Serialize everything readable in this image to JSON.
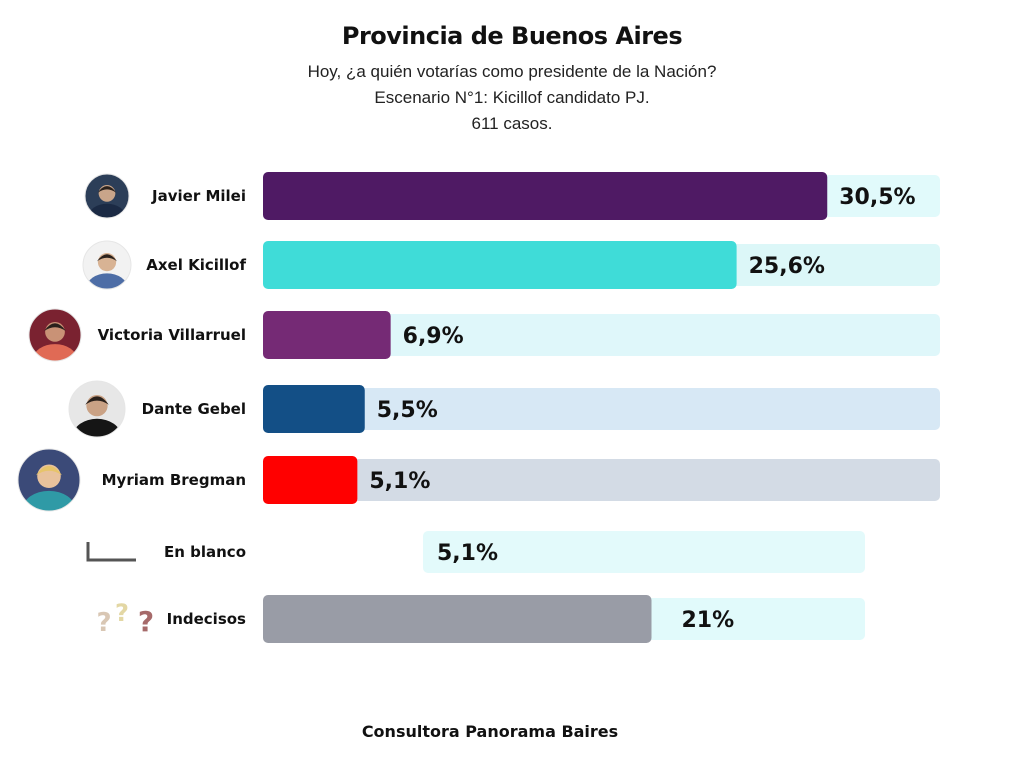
{
  "title": "Provincia de Buenos Aires",
  "subtitle_lines": [
    "Hoy, ¿a quién votarías como presidente de la Nación?",
    "Escenario N°1: Kicillof candidato PJ.",
    "611 casos."
  ],
  "footer": "Consultora Panorama Baires",
  "chart_data": {
    "type": "bar",
    "orientation": "horizontal",
    "categories": [
      "Javier Milei",
      "Axel Kicillof",
      "Victoria Villarruel",
      "Dante Gebel",
      "Myriam Bregman",
      "En blanco",
      "Indecisos"
    ],
    "values": [
      30.5,
      25.6,
      6.9,
      5.5,
      5.1,
      5.1,
      21
    ],
    "value_labels": [
      "30,5%",
      "25,6%",
      "6,9%",
      "5,5%",
      "5,1%",
      "5,1%",
      "21%"
    ],
    "bar_colors": [
      "#4f1a64",
      "#3fdcd8",
      "#752a75",
      "#134f86",
      "#ff0000",
      "",
      "#999ca6"
    ],
    "track_colors": [
      "#e1fafb",
      "#dcf7f8",
      "#dff7fa",
      "#d7e8f5",
      "#d3dbe5",
      "#e3fafb",
      "#e1fafb"
    ],
    "icons": [
      "avatar-photo",
      "avatar-photo",
      "avatar-photo",
      "avatar-photo",
      "avatar-photo",
      "blank-corner-icon",
      "question-marks-icon"
    ]
  }
}
